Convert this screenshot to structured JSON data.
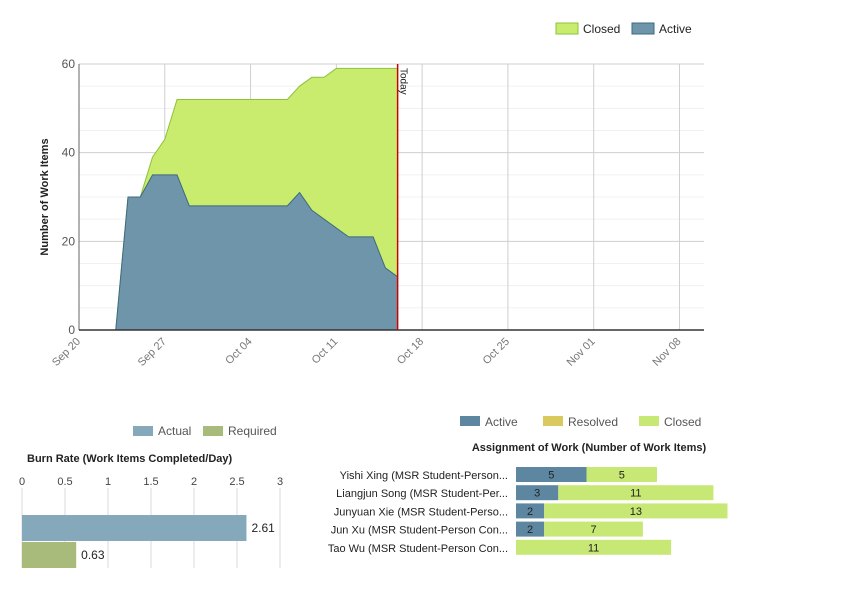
{
  "chart_data": [
    {
      "type": "area",
      "stacked": true,
      "ylabel": "Number of Work Items",
      "xlabel": "",
      "ylim": [
        0,
        60
      ],
      "yticks": [
        0,
        20,
        40,
        60
      ],
      "xlim": [
        "2015-09-20",
        "2015-11-10"
      ],
      "xticks": [
        {
          "date": "2015-09-20",
          "label": "Sep 20"
        },
        {
          "date": "2015-09-27",
          "label": "Sep 27"
        },
        {
          "date": "2015-10-04",
          "label": "Oct 04"
        },
        {
          "date": "2015-10-11",
          "label": "Oct 11"
        },
        {
          "date": "2015-10-18",
          "label": "Oct 18"
        },
        {
          "date": "2015-10-25",
          "label": "Oct 25"
        },
        {
          "date": "2015-11-01",
          "label": "Nov 01"
        },
        {
          "date": "2015-11-08",
          "label": "Nov 08"
        }
      ],
      "today": {
        "date": "2015-10-16",
        "label": "Today",
        "color": "#cc0000"
      },
      "legend_position": "top-right",
      "grid": true,
      "series": [
        {
          "name": "Active",
          "color": "#6f95aa",
          "line_color": "#3e6a7e",
          "points": [
            [
              "2015-09-23",
              0
            ],
            [
              "2015-09-24",
              30
            ],
            [
              "2015-09-25",
              30
            ],
            [
              "2015-09-26",
              35
            ],
            [
              "2015-09-28",
              35
            ],
            [
              "2015-09-29",
              28
            ],
            [
              "2015-10-07",
              28
            ],
            [
              "2015-10-08",
              31
            ],
            [
              "2015-10-09",
              27
            ],
            [
              "2015-10-12",
              21
            ],
            [
              "2015-10-14",
              21
            ],
            [
              "2015-10-15",
              14
            ],
            [
              "2015-10-16",
              12
            ]
          ]
        },
        {
          "name": "Closed",
          "color": "#c9ec6e",
          "line_color": "#8cc23b",
          "points": [
            [
              "2015-09-23",
              0
            ],
            [
              "2015-09-24",
              30
            ],
            [
              "2015-09-25",
              30
            ],
            [
              "2015-09-26",
              39
            ],
            [
              "2015-09-27",
              43
            ],
            [
              "2015-09-28",
              52
            ],
            [
              "2015-10-07",
              52
            ],
            [
              "2015-10-08",
              55
            ],
            [
              "2015-10-09",
              57
            ],
            [
              "2015-10-10",
              57
            ],
            [
              "2015-10-11",
              59
            ],
            [
              "2015-10-16",
              59
            ]
          ]
        }
      ]
    },
    {
      "type": "bar",
      "orientation": "horizontal",
      "title": "Burn Rate (Work Items Completed/Day)",
      "xlim": [
        0,
        3
      ],
      "xticks": [
        "0",
        "0.5",
        "1",
        "1.5",
        "2",
        "2.5",
        "3"
      ],
      "legend_position": "top",
      "series": [
        {
          "name": "Actual",
          "value": 2.61,
          "label": "2.61",
          "color": "#86a8bb"
        },
        {
          "name": "Required",
          "value": 0.63,
          "label": "0.63",
          "color": "#a8bb7a"
        }
      ]
    },
    {
      "type": "bar",
      "orientation": "horizontal",
      "stacked": true,
      "title": "Assignment of Work (Number of Work Items)",
      "legend_position": "top",
      "categories": [
        "Yishi Xing (MSR Student-Person...",
        "Liangjun Song (MSR Student-Per...",
        "Junyuan Xie (MSR Student-Perso...",
        "Jun Xu (MSR Student-Person Con...",
        "Tao Wu (MSR Student-Person Con..."
      ],
      "series": [
        {
          "name": "Active",
          "color": "#5d87a1",
          "values": [
            5,
            3,
            2,
            2,
            0
          ]
        },
        {
          "name": "Resolved",
          "color": "#d9c95e",
          "values": [
            0,
            0,
            0,
            0,
            0
          ]
        },
        {
          "name": "Closed",
          "color": "#c7e874",
          "values": [
            5,
            11,
            13,
            7,
            11
          ]
        }
      ]
    }
  ]
}
